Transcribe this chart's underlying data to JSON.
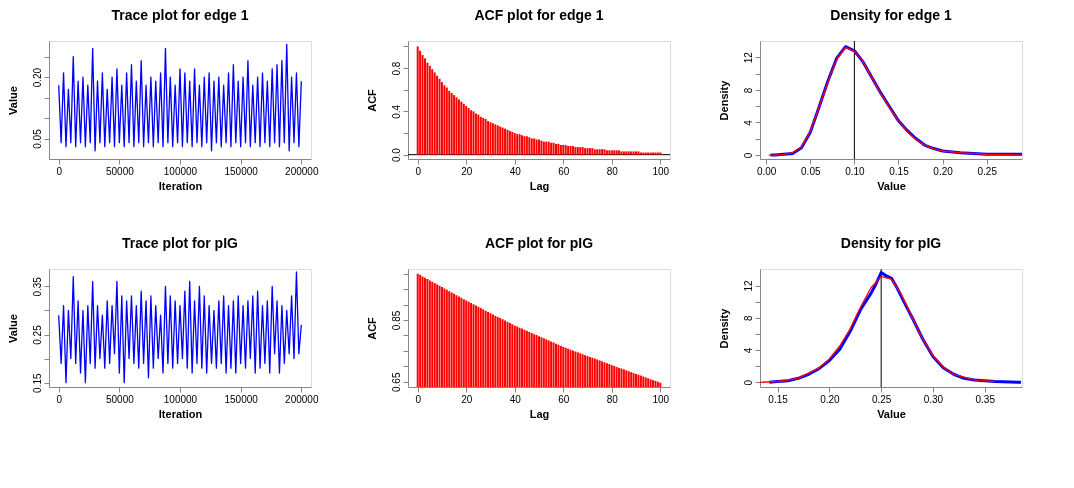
{
  "chart_data": [
    {
      "type": "line",
      "title": "Trace plot for edge 1",
      "xlabel": "Iteration",
      "ylabel": "Value",
      "x": [
        0,
        2000,
        4000,
        6000,
        8000,
        10000,
        12000,
        14000,
        16000,
        18000,
        20000,
        22000,
        24000,
        26000,
        28000,
        30000,
        32000,
        34000,
        36000,
        38000,
        40000,
        42000,
        44000,
        46000,
        48000,
        50000,
        52000,
        54000,
        56000,
        58000,
        60000,
        62000,
        64000,
        66000,
        68000,
        70000,
        72000,
        74000,
        76000,
        78000,
        80000,
        82000,
        84000,
        86000,
        88000,
        90000,
        92000,
        94000,
        96000,
        98000,
        100000,
        102000,
        104000,
        106000,
        108000,
        110000,
        112000,
        114000,
        116000,
        118000,
        120000,
        122000,
        124000,
        126000,
        128000,
        130000,
        132000,
        134000,
        136000,
        138000,
        140000,
        142000,
        144000,
        146000,
        148000,
        150000,
        152000,
        154000,
        156000,
        158000,
        160000,
        162000,
        164000,
        166000,
        168000,
        170000,
        172000,
        174000,
        176000,
        178000,
        180000,
        182000,
        184000,
        186000,
        188000,
        190000,
        192000,
        194000,
        196000,
        198000,
        200000
      ],
      "series": [
        {
          "color": "#0000ff",
          "values": [
            0.18,
            0.04,
            0.21,
            0.03,
            0.17,
            0.04,
            0.25,
            0.03,
            0.19,
            0.04,
            0.2,
            0.03,
            0.18,
            0.04,
            0.27,
            0.02,
            0.19,
            0.04,
            0.21,
            0.03,
            0.17,
            0.04,
            0.2,
            0.03,
            0.22,
            0.04,
            0.18,
            0.03,
            0.21,
            0.04,
            0.23,
            0.03,
            0.19,
            0.04,
            0.24,
            0.03,
            0.18,
            0.04,
            0.2,
            0.03,
            0.19,
            0.04,
            0.21,
            0.03,
            0.27,
            0.04,
            0.2,
            0.03,
            0.18,
            0.04,
            0.22,
            0.03,
            0.21,
            0.04,
            0.19,
            0.03,
            0.22,
            0.04,
            0.18,
            0.03,
            0.2,
            0.04,
            0.21,
            0.02,
            0.19,
            0.04,
            0.2,
            0.03,
            0.18,
            0.04,
            0.21,
            0.03,
            0.23,
            0.04,
            0.19,
            0.03,
            0.2,
            0.04,
            0.24,
            0.03,
            0.18,
            0.04,
            0.2,
            0.03,
            0.21,
            0.04,
            0.19,
            0.03,
            0.22,
            0.04,
            0.23,
            0.03,
            0.24,
            0.04,
            0.28,
            0.02,
            0.2,
            0.04,
            0.21,
            0.03,
            0.19
          ]
        }
      ],
      "xlim": [
        -8000,
        208000
      ],
      "ylim": [
        0.0,
        0.288
      ],
      "xticks": [
        0,
        50000,
        100000,
        150000,
        200000
      ],
      "yticks": [
        {
          "value": 0.05,
          "label": "0.05"
        },
        {
          "value": 0.1,
          "label": null
        },
        {
          "value": 0.15,
          "label": null
        },
        {
          "value": 0.2,
          "label": "0.20"
        },
        {
          "value": 0.25,
          "label": null
        }
      ]
    },
    {
      "type": "bar",
      "title": "ACF plot for edge 1",
      "xlabel": "Lag",
      "ylabel": "ACF",
      "x": [
        0,
        1,
        2,
        3,
        4,
        5,
        6,
        7,
        8,
        9,
        10,
        11,
        12,
        13,
        14,
        15,
        16,
        17,
        18,
        19,
        20,
        21,
        22,
        23,
        24,
        25,
        26,
        27,
        28,
        29,
        30,
        31,
        32,
        33,
        34,
        35,
        36,
        37,
        38,
        39,
        40,
        41,
        42,
        43,
        44,
        45,
        46,
        47,
        48,
        49,
        50,
        51,
        52,
        53,
        54,
        55,
        56,
        57,
        58,
        59,
        60,
        61,
        62,
        63,
        64,
        65,
        66,
        67,
        68,
        69,
        70,
        71,
        72,
        73,
        74,
        75,
        76,
        77,
        78,
        79,
        80,
        81,
        82,
        83,
        84,
        85,
        86,
        87,
        88,
        89,
        90,
        91,
        92,
        93,
        94,
        95,
        96,
        97,
        98,
        99,
        100
      ],
      "series": [
        {
          "color": "#ff0000",
          "values": [
            1.0,
            0.96,
            0.92,
            0.89,
            0.85,
            0.82,
            0.79,
            0.76,
            0.73,
            0.7,
            0.67,
            0.64,
            0.62,
            0.59,
            0.57,
            0.55,
            0.53,
            0.51,
            0.49,
            0.47,
            0.45,
            0.43,
            0.41,
            0.4,
            0.38,
            0.37,
            0.35,
            0.34,
            0.33,
            0.31,
            0.3,
            0.29,
            0.28,
            0.27,
            0.26,
            0.25,
            0.24,
            0.23,
            0.22,
            0.21,
            0.2,
            0.19,
            0.19,
            0.18,
            0.17,
            0.17,
            0.16,
            0.15,
            0.15,
            0.14,
            0.14,
            0.13,
            0.12,
            0.12,
            0.12,
            0.11,
            0.11,
            0.1,
            0.1,
            0.09,
            0.09,
            0.09,
            0.08,
            0.08,
            0.08,
            0.07,
            0.07,
            0.07,
            0.07,
            0.06,
            0.06,
            0.06,
            0.06,
            0.05,
            0.05,
            0.05,
            0.05,
            0.05,
            0.04,
            0.04,
            0.04,
            0.04,
            0.04,
            0.04,
            0.03,
            0.03,
            0.03,
            0.03,
            0.03,
            0.03,
            0.03,
            0.03,
            0.02,
            0.02,
            0.02,
            0.02,
            0.02,
            0.02,
            0.02,
            0.02,
            0.02
          ]
        }
      ],
      "xlim": [
        -4,
        104
      ],
      "ylim": [
        -0.04,
        1.05
      ],
      "xticks": [
        0,
        20,
        40,
        60,
        80,
        100
      ],
      "yticks": [
        {
          "value": 0,
          "label": "0.0"
        },
        {
          "value": 0.2,
          "label": null
        },
        {
          "value": 0.4,
          "label": "0.4"
        },
        {
          "value": 0.6,
          "label": null
        },
        {
          "value": 0.8,
          "label": "0.8"
        },
        {
          "value": 1.0,
          "label": null
        }
      ],
      "ref_lines": [
        {
          "axis": "y",
          "value": 0
        }
      ]
    },
    {
      "type": "line",
      "title": "Density for edge 1",
      "xlabel": "Value",
      "ylabel": "Density",
      "series": [
        {
          "color": "#0000ff",
          "x": [
            0.005,
            0.01,
            0.02,
            0.03,
            0.04,
            0.05,
            0.06,
            0.07,
            0.08,
            0.09,
            0.1,
            0.11,
            0.12,
            0.13,
            0.14,
            0.15,
            0.16,
            0.17,
            0.18,
            0.19,
            0.2,
            0.22,
            0.25,
            0.29
          ],
          "values": [
            0.0,
            0.0,
            0.1,
            0.2,
            0.9,
            2.8,
            5.9,
            9.1,
            11.9,
            13.3,
            12.8,
            11.4,
            9.5,
            7.6,
            5.9,
            4.2,
            3.0,
            2.0,
            1.2,
            0.8,
            0.5,
            0.3,
            0.1,
            0.1
          ]
        },
        {
          "color": "#ff0000",
          "x": [
            0.003,
            0.01,
            0.02,
            0.03,
            0.04,
            0.05,
            0.06,
            0.07,
            0.08,
            0.09,
            0.1,
            0.11,
            0.12,
            0.13,
            0.14,
            0.15,
            0.16,
            0.17,
            0.18,
            0.19,
            0.2,
            0.22,
            0.25,
            0.29
          ],
          "values": [
            0.0,
            0.0,
            0.1,
            0.3,
            1.0,
            2.9,
            5.9,
            9.0,
            11.8,
            13.2,
            12.8,
            11.4,
            9.5,
            7.5,
            5.8,
            4.2,
            2.9,
            1.9,
            1.2,
            0.8,
            0.5,
            0.3,
            0.1,
            0.0
          ]
        }
      ],
      "xlim": [
        -0.007,
        0.29
      ],
      "ylim": [
        -0.48,
        14.0
      ],
      "xticks": [
        {
          "value": 0,
          "label": "0.00"
        },
        {
          "value": 0.05,
          "label": "0.05"
        },
        {
          "value": 0.1,
          "label": "0.10"
        },
        {
          "value": 0.15,
          "label": "0.15"
        },
        {
          "value": 0.2,
          "label": "0.20"
        },
        {
          "value": 0.25,
          "label": "0.25"
        }
      ],
      "yticks": [
        0,
        {
          "value": 2,
          "label": null
        },
        4,
        {
          "value": 6,
          "label": null
        },
        8,
        {
          "value": 10,
          "label": null
        },
        12
      ],
      "ref_lines": [
        {
          "axis": "x",
          "value": 0.1
        }
      ]
    },
    {
      "type": "line",
      "title": "Trace plot for pIG",
      "xlabel": "Iteration",
      "ylabel": "Value",
      "x": [
        0,
        2000,
        4000,
        6000,
        8000,
        10000,
        12000,
        14000,
        16000,
        18000,
        20000,
        22000,
        24000,
        26000,
        28000,
        30000,
        32000,
        34000,
        36000,
        38000,
        40000,
        42000,
        44000,
        46000,
        48000,
        50000,
        52000,
        54000,
        56000,
        58000,
        60000,
        62000,
        64000,
        66000,
        68000,
        70000,
        72000,
        74000,
        76000,
        78000,
        80000,
        82000,
        84000,
        86000,
        88000,
        90000,
        92000,
        94000,
        96000,
        98000,
        100000,
        102000,
        104000,
        106000,
        108000,
        110000,
        112000,
        114000,
        116000,
        118000,
        120000,
        122000,
        124000,
        126000,
        128000,
        130000,
        132000,
        134000,
        136000,
        138000,
        140000,
        142000,
        144000,
        146000,
        148000,
        150000,
        152000,
        154000,
        156000,
        158000,
        160000,
        162000,
        164000,
        166000,
        168000,
        170000,
        172000,
        174000,
        176000,
        178000,
        180000,
        182000,
        184000,
        186000,
        188000,
        190000,
        192000,
        194000,
        196000,
        198000,
        200000
      ],
      "series": [
        {
          "color": "#0000ff",
          "values": [
            0.29,
            0.19,
            0.31,
            0.15,
            0.3,
            0.2,
            0.37,
            0.19,
            0.32,
            0.17,
            0.3,
            0.15,
            0.31,
            0.19,
            0.36,
            0.18,
            0.31,
            0.2,
            0.29,
            0.18,
            0.32,
            0.19,
            0.31,
            0.21,
            0.36,
            0.17,
            0.33,
            0.15,
            0.32,
            0.2,
            0.33,
            0.19,
            0.31,
            0.18,
            0.34,
            0.19,
            0.32,
            0.16,
            0.33,
            0.18,
            0.31,
            0.2,
            0.29,
            0.17,
            0.35,
            0.19,
            0.33,
            0.18,
            0.32,
            0.19,
            0.31,
            0.2,
            0.34,
            0.18,
            0.36,
            0.17,
            0.32,
            0.19,
            0.35,
            0.18,
            0.33,
            0.17,
            0.31,
            0.19,
            0.3,
            0.18,
            0.32,
            0.19,
            0.33,
            0.17,
            0.31,
            0.18,
            0.32,
            0.17,
            0.33,
            0.19,
            0.31,
            0.18,
            0.32,
            0.2,
            0.33,
            0.17,
            0.34,
            0.18,
            0.31,
            0.19,
            0.32,
            0.17,
            0.35,
            0.21,
            0.32,
            0.17,
            0.31,
            0.19,
            0.3,
            0.21,
            0.33,
            0.2,
            0.38,
            0.21,
            0.27
          ]
        }
      ],
      "xlim": [
        -8000,
        208000
      ],
      "ylim": [
        0.141,
        0.386
      ],
      "xticks": [
        0,
        50000,
        100000,
        150000,
        200000
      ],
      "yticks": [
        {
          "value": 0.15,
          "label": "0.15"
        },
        {
          "value": 0.2,
          "label": null
        },
        {
          "value": 0.25,
          "label": "0.25"
        },
        {
          "value": 0.3,
          "label": null
        },
        {
          "value": 0.35,
          "label": "0.35"
        }
      ]
    },
    {
      "type": "bar",
      "title": "ACF plot for pIG",
      "xlabel": "Lag",
      "ylabel": "ACF",
      "x": [
        0,
        1,
        2,
        3,
        4,
        5,
        6,
        7,
        8,
        9,
        10,
        11,
        12,
        13,
        14,
        15,
        16,
        17,
        18,
        19,
        20,
        21,
        22,
        23,
        24,
        25,
        26,
        27,
        28,
        29,
        30,
        31,
        32,
        33,
        34,
        35,
        36,
        37,
        38,
        39,
        40,
        41,
        42,
        43,
        44,
        45,
        46,
        47,
        48,
        49,
        50,
        51,
        52,
        53,
        54,
        55,
        56,
        57,
        58,
        59,
        60,
        61,
        62,
        63,
        64,
        65,
        66,
        67,
        68,
        69,
        70,
        71,
        72,
        73,
        74,
        75,
        76,
        77,
        78,
        79,
        80,
        81,
        82,
        83,
        84,
        85,
        86,
        87,
        88,
        89,
        90,
        91,
        92,
        93,
        94,
        95,
        96,
        97,
        98,
        99,
        100
      ],
      "series": [
        {
          "color": "#ff0000",
          "values": [
            1.0,
            0.996,
            0.991,
            0.987,
            0.983,
            0.978,
            0.974,
            0.97,
            0.965,
            0.961,
            0.957,
            0.952,
            0.948,
            0.943,
            0.939,
            0.935,
            0.93,
            0.926,
            0.922,
            0.917,
            0.913,
            0.909,
            0.905,
            0.901,
            0.897,
            0.893,
            0.889,
            0.885,
            0.88,
            0.876,
            0.872,
            0.868,
            0.864,
            0.86,
            0.856,
            0.852,
            0.848,
            0.844,
            0.84,
            0.836,
            0.832,
            0.829,
            0.825,
            0.822,
            0.818,
            0.815,
            0.811,
            0.808,
            0.804,
            0.801,
            0.797,
            0.794,
            0.791,
            0.787,
            0.784,
            0.78,
            0.777,
            0.773,
            0.77,
            0.766,
            0.763,
            0.76,
            0.757,
            0.754,
            0.751,
            0.748,
            0.745,
            0.742,
            0.739,
            0.736,
            0.733,
            0.73,
            0.728,
            0.725,
            0.722,
            0.719,
            0.716,
            0.713,
            0.71,
            0.707,
            0.704,
            0.701,
            0.698,
            0.695,
            0.693,
            0.69,
            0.687,
            0.684,
            0.681,
            0.678,
            0.675,
            0.673,
            0.67,
            0.667,
            0.664,
            0.661,
            0.658,
            0.655,
            0.653,
            0.65,
            0.647
          ]
        }
      ],
      "xlim": [
        -4,
        104
      ],
      "ylim": [
        0.633,
        1.015
      ],
      "xticks": [
        0,
        20,
        40,
        60,
        80,
        100
      ],
      "yticks": [
        {
          "value": 0.65,
          "label": "0.65"
        },
        {
          "value": 0.7,
          "label": null
        },
        {
          "value": 0.75,
          "label": null
        },
        {
          "value": 0.8,
          "label": null
        },
        {
          "value": 0.85,
          "label": "0.85"
        },
        {
          "value": 0.9,
          "label": null
        },
        {
          "value": 0.95,
          "label": null
        },
        {
          "value": 1.0,
          "label": null
        }
      ]
    },
    {
      "type": "line",
      "title": "Density for pIG",
      "xlabel": "Value",
      "ylabel": "Density",
      "series": [
        {
          "color": "#0000ff",
          "x": [
            0.142,
            0.15,
            0.16,
            0.17,
            0.18,
            0.19,
            0.2,
            0.21,
            0.22,
            0.23,
            0.24,
            0.245,
            0.25,
            0.255,
            0.26,
            0.265,
            0.27,
            0.28,
            0.29,
            0.3,
            0.31,
            0.32,
            0.33,
            0.34,
            0.36,
            0.385
          ],
          "values": [
            0.0,
            0.1,
            0.2,
            0.5,
            1.0,
            1.7,
            2.7,
            4.1,
            6.3,
            9.0,
            11.0,
            12.2,
            13.6,
            13.2,
            12.9,
            11.8,
            10.5,
            8.0,
            5.4,
            3.2,
            1.8,
            1.0,
            0.5,
            0.3,
            0.1,
            0.0
          ]
        },
        {
          "color": "#ff0000",
          "x": [
            0.133,
            0.15,
            0.17,
            0.19,
            0.2,
            0.21,
            0.22,
            0.23,
            0.24,
            0.25,
            0.26,
            0.27,
            0.28,
            0.29,
            0.3,
            0.31,
            0.32,
            0.34,
            0.36
          ],
          "values": [
            0.0,
            0.1,
            0.5,
            1.8,
            2.9,
            4.5,
            6.6,
            9.3,
            11.7,
            13.1,
            12.8,
            10.8,
            8.0,
            5.4,
            3.3,
            1.9,
            1.0,
            0.3,
            0.1
          ]
        }
      ],
      "xlim": [
        0.133,
        0.386
      ],
      "ylim": [
        -0.58,
        14.05
      ],
      "xticks": [
        {
          "value": 0.15,
          "label": "0.15"
        },
        {
          "value": 0.2,
          "label": "0.20"
        },
        {
          "value": 0.25,
          "label": "0.25"
        },
        {
          "value": 0.3,
          "label": "0.30"
        },
        {
          "value": 0.35,
          "label": "0.35"
        }
      ],
      "yticks": [
        0,
        {
          "value": 2,
          "label": null
        },
        4,
        {
          "value": 6,
          "label": null
        },
        8,
        {
          "value": 10,
          "label": null
        },
        12
      ],
      "ref_lines": [
        {
          "axis": "x",
          "value": 0.25
        }
      ]
    }
  ]
}
